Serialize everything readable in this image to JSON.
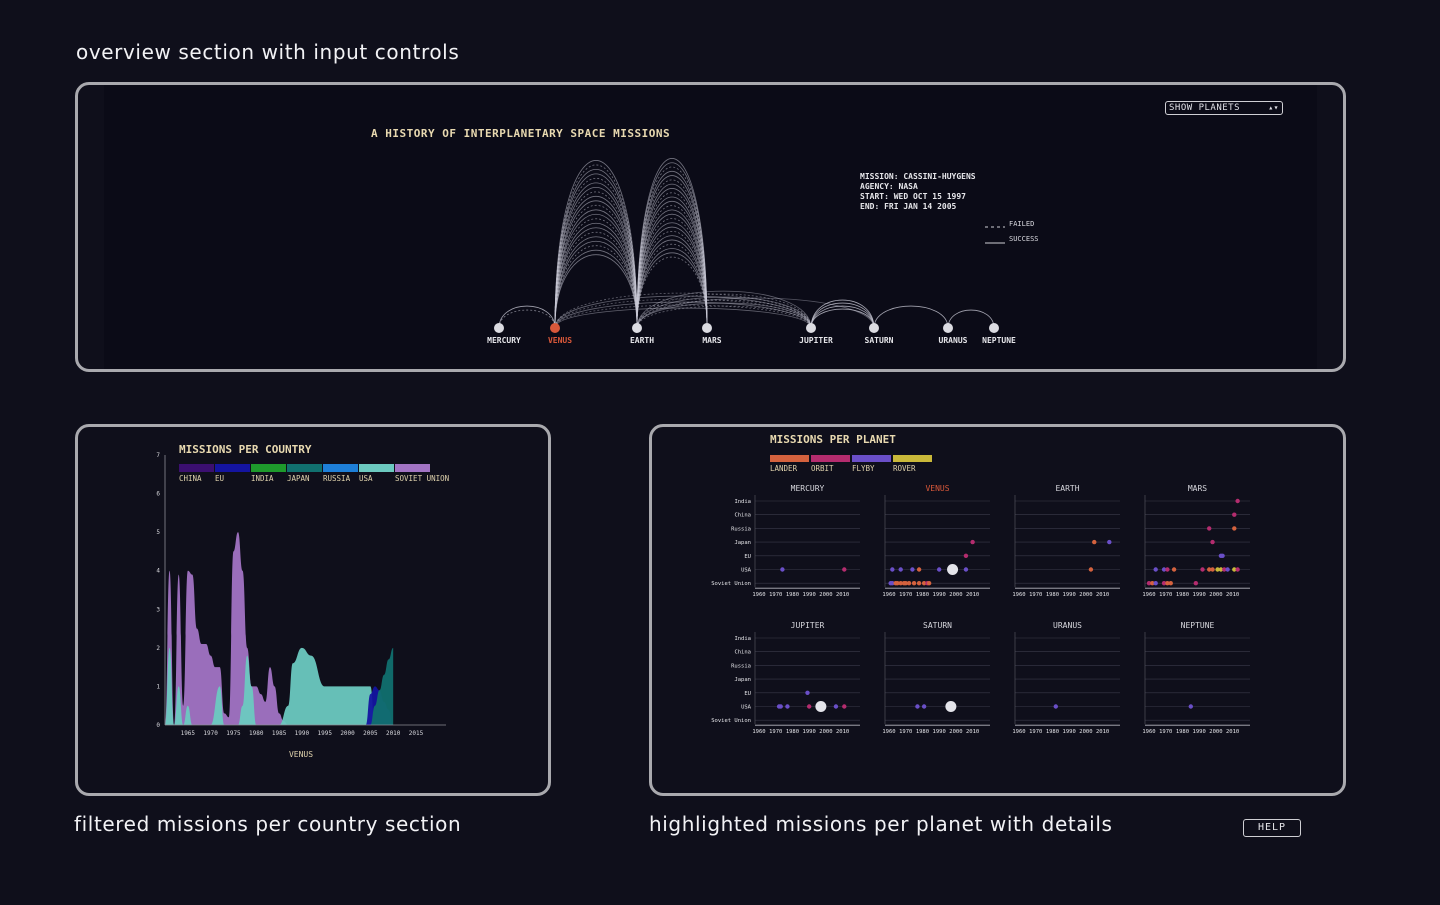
{
  "captions": {
    "overview": "overview section with input controls",
    "country": "filtered missions per country section",
    "planet": "highlighted missions per planet with details"
  },
  "overview": {
    "title": "A HISTORY OF INTERPLANETARY SPACE MISSIONS",
    "select_value": "SHOW PLANETS",
    "mission_info": [
      "MISSION: CASSINI-HUYGENS",
      "AGENCY: NASA",
      "START: WED OCT 15 1997",
      "END: FRI JAN 14 2005"
    ],
    "legend": {
      "failed": "FAILED",
      "success": "SUCCESS"
    },
    "planets": [
      "MERCURY",
      "VENUS",
      "EARTH",
      "MARS",
      "JUPITER",
      "SATURN",
      "URANUS",
      "NEPTUNE"
    ],
    "highlighted_planet": "VENUS",
    "highlight_color": "#d9583a"
  },
  "help_label": "HELP",
  "country_chart": {
    "chart_data": {
      "type": "area",
      "title": "MISSIONS PER COUNTRY",
      "xlabel": "VENUS",
      "ylabel": "",
      "x_ticks": [
        "1965",
        "1970",
        "1975",
        "1980",
        "1985",
        "1990",
        "1995",
        "2000",
        "2005",
        "2010",
        "2015"
      ],
      "y_ticks": [
        "0",
        "1",
        "2",
        "3",
        "4",
        "5",
        "6",
        "7"
      ],
      "ylim": [
        0,
        7
      ],
      "xlim": [
        1960,
        2015
      ],
      "legend": [
        {
          "name": "CHINA",
          "color": "#3b0f70"
        },
        {
          "name": "EU",
          "color": "#1414a0"
        },
        {
          "name": "INDIA",
          "color": "#1e9a2c"
        },
        {
          "name": "JAPAN",
          "color": "#11706f"
        },
        {
          "name": "RUSSIA",
          "color": "#1e7fd8"
        },
        {
          "name": "USA",
          "color": "#6cc9c0"
        },
        {
          "name": "SOVIET UNION",
          "color": "#a274c4"
        }
      ],
      "series": [
        {
          "name": "SOVIET UNION",
          "color": "#a274c4",
          "x": [
            1960,
            1961,
            1962,
            1963,
            1964,
            1965,
            1966,
            1967,
            1968,
            1969,
            1970,
            1971,
            1972,
            1973,
            1974,
            1975,
            1976,
            1977,
            1978,
            1979,
            1980,
            1981,
            1982,
            1983,
            1984,
            1985,
            1986,
            1987
          ],
          "y": [
            0,
            4,
            0,
            3.9,
            0.5,
            4,
            3.9,
            2.5,
            2.1,
            2.1,
            1.8,
            1.5,
            1.5,
            0.3,
            0.2,
            4.5,
            5.0,
            4.0,
            2.0,
            1.0,
            1.0,
            0.8,
            0.6,
            1.5,
            1.0,
            0.3,
            0.1,
            0
          ]
        },
        {
          "name": "USA",
          "color": "#6cc9c0",
          "x": [
            1960,
            1961,
            1962,
            1963,
            1964,
            1965,
            1966,
            1967,
            1968,
            1969,
            1970,
            1972,
            1973,
            1974,
            1975,
            1976,
            1977,
            1978,
            1979,
            1980,
            1983,
            1985,
            1987,
            1988,
            1990,
            1992,
            1995,
            1997,
            2000,
            2004,
            2005,
            2006
          ],
          "y": [
            0,
            2,
            0,
            1,
            0,
            0.5,
            0,
            0,
            0,
            0,
            0,
            1,
            0,
            0,
            0,
            0,
            0.5,
            1.8,
            1.0,
            0,
            0,
            0,
            0.5,
            1.6,
            2.0,
            1.8,
            1.0,
            1.0,
            1.0,
            1.0,
            1.0,
            0
          ]
        },
        {
          "name": "EU",
          "color": "#1414a0",
          "x": [
            2004,
            2005,
            2006,
            2007,
            2008,
            2009,
            2010
          ],
          "y": [
            0,
            0.8,
            1.0,
            0.9,
            0.6,
            0.4,
            0
          ]
        },
        {
          "name": "JAPAN",
          "color": "#11706f",
          "x": [
            2005,
            2006,
            2007,
            2008,
            2009,
            2010
          ],
          "y": [
            0,
            0.5,
            0.9,
            1.3,
            1.7,
            2.0
          ]
        }
      ]
    }
  },
  "planet_chart": {
    "title": "MISSIONS PER PLANET",
    "legend": [
      {
        "name": "LANDER",
        "color": "#d4623e"
      },
      {
        "name": "ORBIT",
        "color": "#b42c6e"
      },
      {
        "name": "FLYBY",
        "color": "#6a4fc8"
      },
      {
        "name": "ROVER",
        "color": "#c9b83a"
      }
    ],
    "countries": [
      "India",
      "China",
      "Russia",
      "Japan",
      "EU",
      "USA",
      "Soviet Union"
    ],
    "x_ticks": [
      "1960",
      "1970",
      "1980",
      "1990",
      "2000",
      "2010"
    ],
    "highlight_color": "#d9583a",
    "highlighted_planet": "VENUS",
    "chart_data": {
      "type": "scatter",
      "xlim": [
        1960,
        2018
      ],
      "panels": [
        {
          "planet": "MERCURY",
          "points": [
            {
              "x": 1974,
              "country": "USA",
              "type": "FLYBY"
            },
            {
              "x": 2011,
              "country": "USA",
              "type": "ORBIT"
            }
          ]
        },
        {
          "planet": "VENUS",
          "points": [
            {
              "x": 1962,
              "country": "USA",
              "type": "FLYBY"
            },
            {
              "x": 1967,
              "country": "USA",
              "type": "FLYBY"
            },
            {
              "x": 1974,
              "country": "USA",
              "type": "FLYBY"
            },
            {
              "x": 1978,
              "country": "USA",
              "type": "LANDER"
            },
            {
              "x": 1990,
              "country": "USA",
              "type": "FLYBY"
            },
            {
              "x": 1998,
              "country": "USA",
              "type": "FLYBY",
              "selected": true
            },
            {
              "x": 2006,
              "country": "USA",
              "type": "FLYBY"
            },
            {
              "x": 2006,
              "country": "EU",
              "type": "ORBIT"
            },
            {
              "x": 2010,
              "country": "Japan",
              "type": "ORBIT"
            },
            {
              "x": 1961,
              "country": "Soviet Union",
              "type": "FLYBY"
            },
            {
              "x": 1962,
              "country": "Soviet Union",
              "type": "FLYBY"
            },
            {
              "x": 1964,
              "country": "Soviet Union",
              "type": "LANDER"
            },
            {
              "x": 1965,
              "country": "Soviet Union",
              "type": "LANDER"
            },
            {
              "x": 1967,
              "country": "Soviet Union",
              "type": "LANDER"
            },
            {
              "x": 1969,
              "country": "Soviet Union",
              "type": "LANDER"
            },
            {
              "x": 1970,
              "country": "Soviet Union",
              "type": "LANDER"
            },
            {
              "x": 1972,
              "country": "Soviet Union",
              "type": "LANDER"
            },
            {
              "x": 1975,
              "country": "Soviet Union",
              "type": "LANDER"
            },
            {
              "x": 1978,
              "country": "Soviet Union",
              "type": "LANDER"
            },
            {
              "x": 1981,
              "country": "Soviet Union",
              "type": "LANDER"
            },
            {
              "x": 1983,
              "country": "Soviet Union",
              "type": "ORBIT"
            },
            {
              "x": 1984,
              "country": "Soviet Union",
              "type": "LANDER"
            }
          ]
        },
        {
          "planet": "EARTH",
          "points": [
            {
              "x": 2005,
              "country": "Japan",
              "type": "LANDER"
            },
            {
              "x": 2014,
              "country": "Japan",
              "type": "FLYBY"
            },
            {
              "x": 2003,
              "country": "USA",
              "type": "LANDER"
            }
          ]
        },
        {
          "planet": "MARS",
          "points": [
            {
              "x": 2013,
              "country": "India",
              "type": "ORBIT"
            },
            {
              "x": 2011,
              "country": "China",
              "type": "ORBIT"
            },
            {
              "x": 1996,
              "country": "Russia",
              "type": "ORBIT"
            },
            {
              "x": 2011,
              "country": "Russia",
              "type": "LANDER"
            },
            {
              "x": 1998,
              "country": "Japan",
              "type": "ORBIT"
            },
            {
              "x": 2003,
              "country": "EU",
              "type": "FLYBY"
            },
            {
              "x": 2004,
              "country": "EU",
              "type": "FLYBY"
            },
            {
              "x": 1964,
              "country": "USA",
              "type": "FLYBY"
            },
            {
              "x": 1969,
              "country": "USA",
              "type": "FLYBY"
            },
            {
              "x": 1971,
              "country": "USA",
              "type": "ORBIT"
            },
            {
              "x": 1975,
              "country": "USA",
              "type": "LANDER"
            },
            {
              "x": 1992,
              "country": "USA",
              "type": "ORBIT"
            },
            {
              "x": 1996,
              "country": "USA",
              "type": "LANDER"
            },
            {
              "x": 1998,
              "country": "USA",
              "type": "LANDER"
            },
            {
              "x": 2001,
              "country": "USA",
              "type": "ROVER"
            },
            {
              "x": 2003,
              "country": "USA",
              "type": "ROVER"
            },
            {
              "x": 2005,
              "country": "USA",
              "type": "ORBIT"
            },
            {
              "x": 2007,
              "country": "USA",
              "type": "FLYBY"
            },
            {
              "x": 2011,
              "country": "USA",
              "type": "ROVER"
            },
            {
              "x": 2013,
              "country": "USA",
              "type": "ORBIT"
            },
            {
              "x": 1960,
              "country": "Soviet Union",
              "type": "ORBIT"
            },
            {
              "x": 1962,
              "country": "Soviet Union",
              "type": "LANDER"
            },
            {
              "x": 1964,
              "country": "Soviet Union",
              "type": "FLYBY"
            },
            {
              "x": 1969,
              "country": "Soviet Union",
              "type": "ORBIT"
            },
            {
              "x": 1971,
              "country": "Soviet Union",
              "type": "LANDER"
            },
            {
              "x": 1973,
              "country": "Soviet Union",
              "type": "LANDER"
            },
            {
              "x": 1988,
              "country": "Soviet Union",
              "type": "ORBIT"
            }
          ]
        },
        {
          "planet": "JUPITER",
          "points": [
            {
              "x": 1972,
              "country": "USA",
              "type": "FLYBY"
            },
            {
              "x": 1973,
              "country": "USA",
              "type": "FLYBY"
            },
            {
              "x": 1977,
              "country": "USA",
              "type": "FLYBY"
            },
            {
              "x": 1989,
              "country": "EU",
              "type": "FLYBY"
            },
            {
              "x": 1990,
              "country": "USA",
              "type": "ORBIT"
            },
            {
              "x": 1997,
              "country": "USA",
              "type": "FLYBY",
              "selected": true
            },
            {
              "x": 2006,
              "country": "USA",
              "type": "FLYBY"
            },
            {
              "x": 2011,
              "country": "USA",
              "type": "ORBIT"
            }
          ]
        },
        {
          "planet": "SATURN",
          "points": [
            {
              "x": 1977,
              "country": "USA",
              "type": "FLYBY"
            },
            {
              "x": 1981,
              "country": "USA",
              "type": "FLYBY"
            },
            {
              "x": 1997,
              "country": "USA",
              "type": "FLYBY",
              "selected": true
            }
          ]
        },
        {
          "planet": "URANUS",
          "points": [
            {
              "x": 1982,
              "country": "USA",
              "type": "FLYBY"
            }
          ]
        },
        {
          "planet": "NEPTUNE",
          "points": [
            {
              "x": 1985,
              "country": "USA",
              "type": "FLYBY"
            }
          ]
        }
      ]
    }
  }
}
